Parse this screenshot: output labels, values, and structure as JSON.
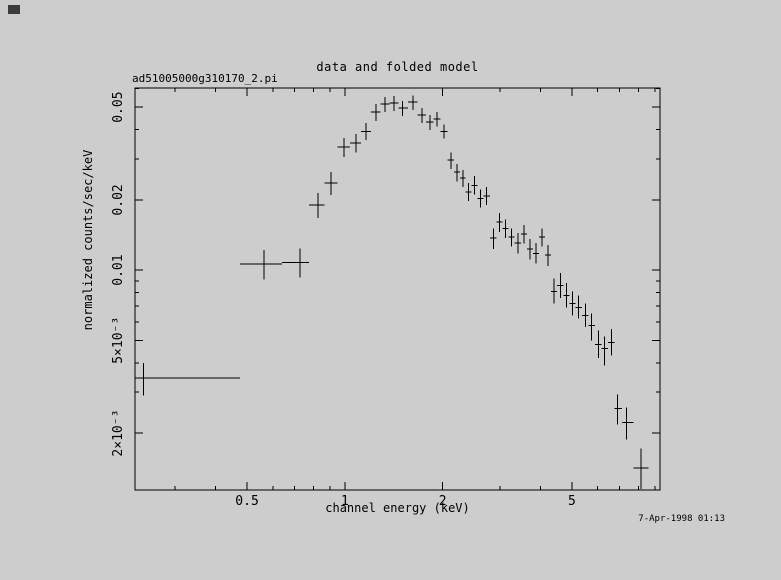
{
  "window": {
    "background": "#cdcdcd",
    "ink_color": "#000000"
  },
  "chart_data": {
    "type": "scatter",
    "plot_style": "xspec-pgplot-spectrum",
    "title": "data and folded model",
    "annotation": "ad51005000g310170_2.pi",
    "xlabel": "channel energy (keV)",
    "ylabel": "normalized counts/sec/keV",
    "timestamp": "7-Apr-1998 01:13",
    "xscale": "log",
    "yscale": "log",
    "grid": false,
    "legend": "none",
    "marker": "cross-with-error-bars",
    "color": "#000000",
    "xlim": [
      0.226,
      9.33
    ],
    "ylim": [
      0.00114,
      0.0604
    ],
    "xticks_major": [
      0.5,
      1,
      2,
      5
    ],
    "xtick_labels": [
      "0.5",
      "1",
      "2",
      "5"
    ],
    "xticks_minor": [
      0.3,
      0.4,
      0.6,
      0.7,
      0.8,
      0.9,
      3,
      4,
      6,
      7,
      8,
      9
    ],
    "yticks_major": [
      0.002,
      0.005,
      0.01,
      0.02,
      0.05
    ],
    "ytick_labels": [
      "2×10⁻³",
      "5×10⁻³",
      "0.01",
      "0.02",
      "0.05"
    ],
    "yticks_minor": [
      0.003,
      0.004,
      0.006,
      0.007,
      0.008,
      0.009,
      0.03,
      0.04,
      0.06
    ],
    "columns": [
      "energy",
      "energy_lo",
      "energy_hi",
      "rate",
      "rate_lo",
      "rate_hi"
    ],
    "points": [
      [
        0.24,
        0.226,
        0.475,
        0.00344,
        0.0029,
        0.004
      ],
      [
        0.563,
        0.475,
        0.64,
        0.0106,
        0.0091,
        0.0122
      ],
      [
        0.727,
        0.64,
        0.775,
        0.0108,
        0.0093,
        0.0124
      ],
      [
        0.826,
        0.775,
        0.865,
        0.019,
        0.0167,
        0.0214
      ],
      [
        0.906,
        0.865,
        0.949,
        0.0236,
        0.021,
        0.0263
      ],
      [
        0.993,
        0.949,
        1.036,
        0.0337,
        0.0305,
        0.0368
      ],
      [
        1.081,
        1.036,
        1.12,
        0.0351,
        0.032,
        0.0383
      ],
      [
        1.16,
        1.12,
        1.202,
        0.0394,
        0.0361,
        0.0427
      ],
      [
        1.246,
        1.202,
        1.286,
        0.0476,
        0.0435,
        0.0516
      ],
      [
        1.327,
        1.286,
        1.37,
        0.0516,
        0.0476,
        0.0552
      ],
      [
        1.415,
        1.37,
        1.46,
        0.0521,
        0.0481,
        0.0557
      ],
      [
        1.507,
        1.46,
        1.562,
        0.0495,
        0.0457,
        0.0531
      ],
      [
        1.619,
        1.562,
        1.671,
        0.0526,
        0.0486,
        0.0562
      ],
      [
        1.725,
        1.671,
        1.774,
        0.0462,
        0.0427,
        0.0495
      ],
      [
        1.825,
        1.774,
        1.871,
        0.0432,
        0.0399,
        0.0462
      ],
      [
        1.918,
        1.871,
        1.967,
        0.0445,
        0.0412,
        0.0477
      ],
      [
        2.017,
        1.967,
        2.069,
        0.0394,
        0.0366,
        0.0422
      ],
      [
        2.122,
        2.069,
        2.166,
        0.0296,
        0.0272,
        0.032
      ],
      [
        2.212,
        2.166,
        2.259,
        0.0263,
        0.024,
        0.0285
      ],
      [
        2.307,
        2.259,
        2.355,
        0.0248,
        0.0227,
        0.0269
      ],
      [
        2.405,
        2.355,
        2.456,
        0.0216,
        0.0198,
        0.0236
      ],
      [
        2.508,
        2.456,
        2.562,
        0.0231,
        0.0211,
        0.0253
      ],
      [
        2.616,
        2.562,
        2.671,
        0.0203,
        0.0186,
        0.0222
      ],
      [
        2.728,
        2.671,
        2.797,
        0.0208,
        0.019,
        0.0227
      ],
      [
        2.868,
        2.797,
        2.93,
        0.0137,
        0.0123,
        0.0151
      ],
      [
        2.993,
        2.93,
        3.058,
        0.0161,
        0.0146,
        0.0176
      ],
      [
        3.125,
        3.058,
        3.193,
        0.0151,
        0.0137,
        0.0165
      ],
      [
        3.262,
        3.193,
        3.333,
        0.0139,
        0.0126,
        0.0151
      ],
      [
        3.405,
        3.333,
        3.479,
        0.0131,
        0.0118,
        0.0144
      ],
      [
        3.555,
        3.479,
        3.633,
        0.0143,
        0.013,
        0.0156
      ],
      [
        3.712,
        3.633,
        3.793,
        0.0123,
        0.0111,
        0.0136
      ],
      [
        3.875,
        3.793,
        3.959,
        0.0118,
        0.0107,
        0.0131
      ],
      [
        4.045,
        3.959,
        4.133,
        0.0139,
        0.0126,
        0.0151
      ],
      [
        4.223,
        4.133,
        4.315,
        0.0116,
        0.0104,
        0.0128
      ],
      [
        4.409,
        4.315,
        4.504,
        0.0081,
        0.0072,
        0.0092
      ],
      [
        4.602,
        4.504,
        4.701,
        0.0086,
        0.0076,
        0.0097
      ],
      [
        4.803,
        4.701,
        4.907,
        0.0078,
        0.0069,
        0.0088
      ],
      [
        5.014,
        4.907,
        5.123,
        0.0072,
        0.0064,
        0.0081
      ],
      [
        5.234,
        5.123,
        5.366,
        0.0069,
        0.0062,
        0.0078
      ],
      [
        5.502,
        5.366,
        5.622,
        0.0064,
        0.0057,
        0.0072
      ],
      [
        5.744,
        5.622,
        5.883,
        0.0058,
        0.005,
        0.0065
      ],
      [
        6.025,
        5.883,
        6.156,
        0.0048,
        0.0042,
        0.0055
      ],
      [
        6.289,
        6.156,
        6.445,
        0.0046,
        0.0039,
        0.0052
      ],
      [
        6.605,
        6.445,
        6.751,
        0.0049,
        0.0043,
        0.0056
      ],
      [
        6.9,
        6.751,
        7.126,
        0.00255,
        0.00218,
        0.00293
      ],
      [
        7.36,
        7.126,
        7.745,
        0.00222,
        0.00188,
        0.00258
      ],
      [
        8.15,
        7.745,
        8.6,
        0.00142,
        0.00115,
        0.00172
      ]
    ]
  }
}
